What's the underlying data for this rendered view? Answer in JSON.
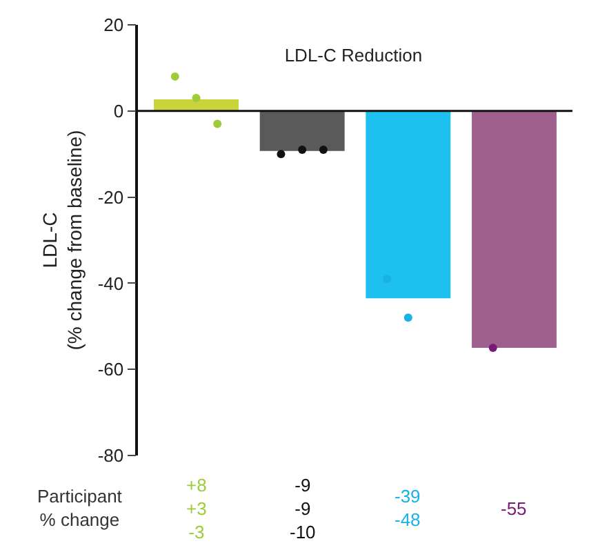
{
  "chart_data": {
    "type": "bar",
    "title": "LDL-C Reduction",
    "ylabel": "LDL-C\n(% change from baseline)",
    "categories": [
      null,
      null,
      null,
      null
    ],
    "series": [
      {
        "colors": [
          "#c8d43a",
          "#5a5a5a",
          "#1ec0ef",
          "#a0608f"
        ],
        "values": [
          2.7,
          -9.3,
          -43.5,
          -55
        ]
      },
      {
        "type": "scatter",
        "colors": [
          "#9ccc3a",
          "#111111",
          "#1ab0e8",
          "#7a1a78"
        ],
        "values": [
          8,
          -10,
          -39,
          -55
        ]
      },
      {
        "type": "scatter",
        "colors": [
          "#9ccc3a",
          "#111111",
          "#1ab0e8",
          null
        ],
        "values": [
          3,
          -9,
          -48,
          null
        ]
      },
      {
        "type": "scatter",
        "colors": [
          "#9ccc3a",
          "#111111",
          null,
          null
        ],
        "values": [
          -3,
          -9,
          null,
          null
        ]
      }
    ],
    "annotations": [
      "Participant\n% change",
      "+8\n+3\n-3",
      "-9\n-9\n-10",
      "-39\n-48",
      "-55"
    ],
    "ref_lines": [
      {
        "axis": "y",
        "value": 0,
        "color": "#111111"
      }
    ],
    "ylim": [
      -80,
      20
    ],
    "yticks": [
      20,
      0,
      -20,
      -40,
      -60,
      -80
    ],
    "marker": "circle"
  }
}
